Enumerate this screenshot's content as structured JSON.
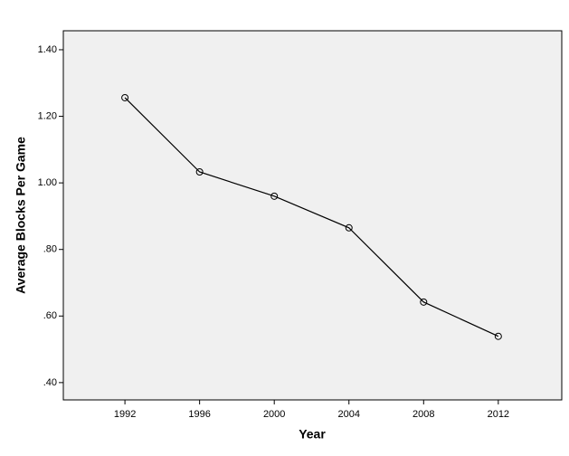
{
  "chart_data": {
    "type": "line",
    "x_label": "Year",
    "y_label": "Average Blocks Per Game",
    "x": [
      1992,
      1996,
      2000,
      2004,
      2008,
      2012
    ],
    "series": [
      {
        "color": "#000000",
        "values": [
          1.256,
          1.033,
          0.96,
          0.865,
          0.642,
          0.539
        ]
      }
    ],
    "xlim": [
      1988.7,
      2015.4
    ],
    "xticks": [
      1992,
      1996,
      2000,
      2004,
      2008,
      2012
    ],
    "ylim": [
      0.348,
      1.457
    ],
    "yticks": [
      {
        "value": 0.4,
        "label": ".40"
      },
      {
        "value": 0.6,
        "label": ".60"
      },
      {
        "value": 0.8,
        "label": ".80"
      },
      {
        "value": 1.0,
        "label": "1.00"
      },
      {
        "value": 1.2,
        "label": "1.20"
      },
      {
        "value": 1.4,
        "label": "1.40"
      }
    ],
    "plot_background": "#f0f0f0",
    "grid": false
  }
}
